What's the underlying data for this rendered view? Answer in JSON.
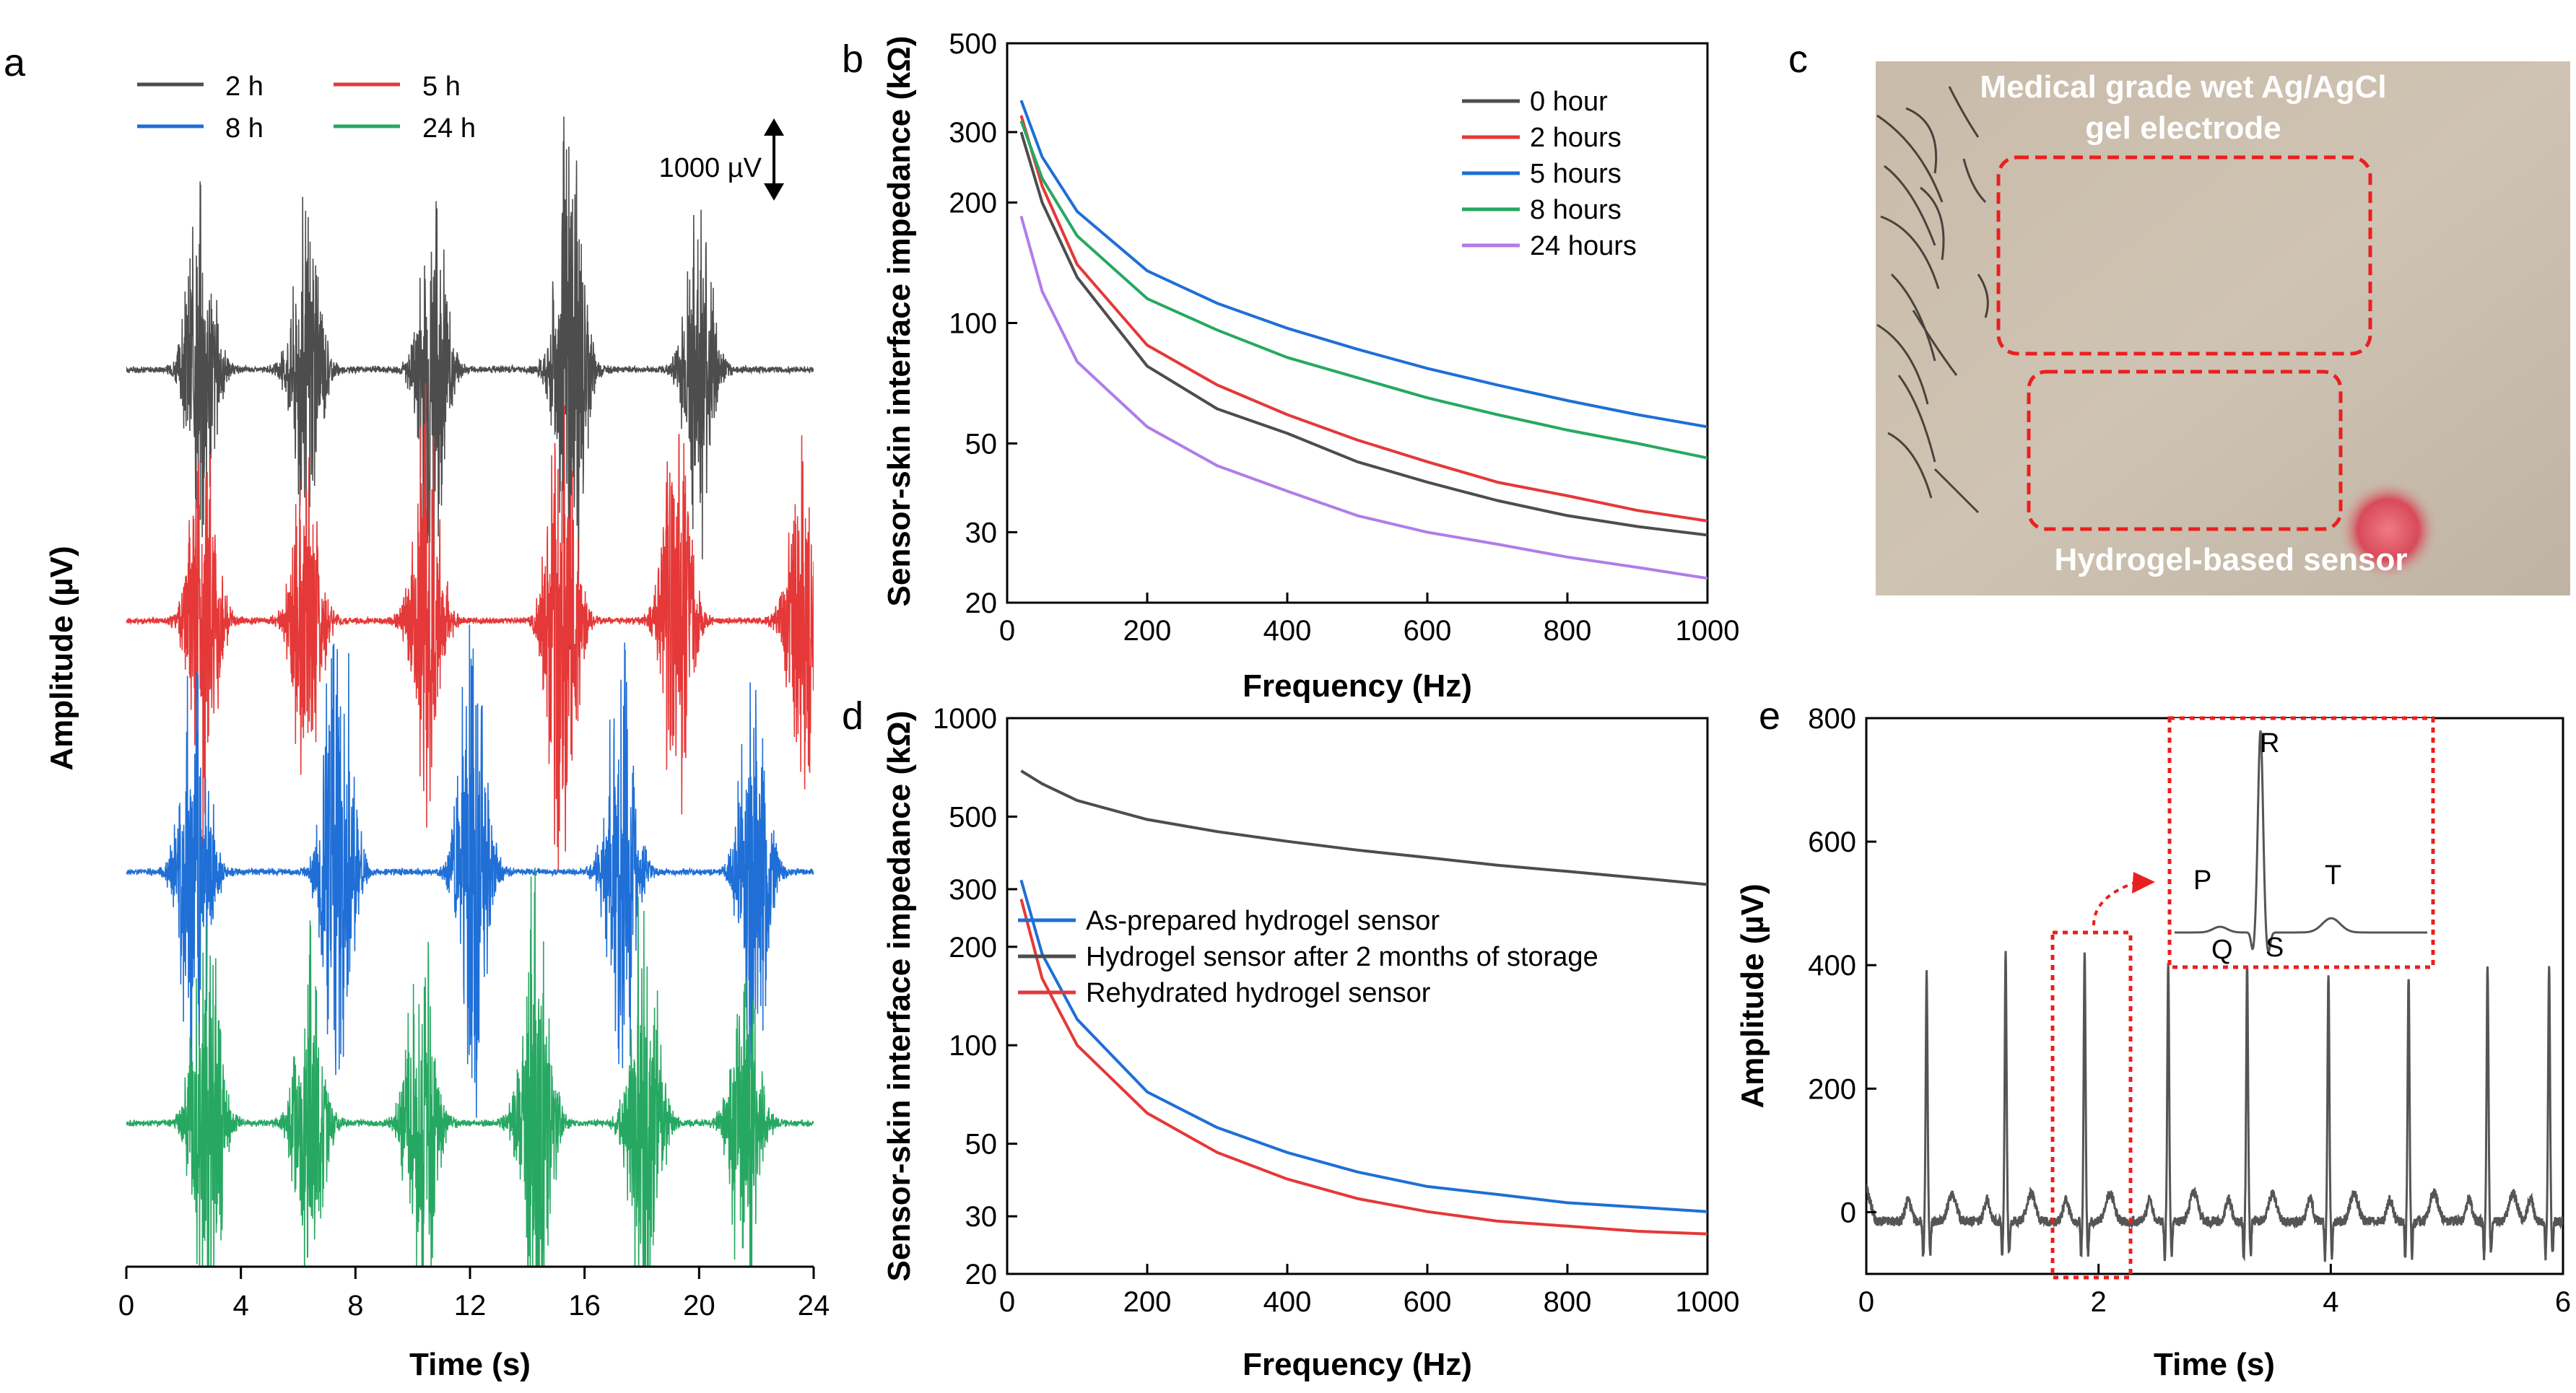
{
  "panels": {
    "a": "a",
    "b": "b",
    "c": "c",
    "d": "d",
    "e": "e"
  },
  "chart_data": [
    {
      "id": "a",
      "type": "line",
      "title": "",
      "xlabel": "Time (s)",
      "ylabel": "Amplitude (µV)",
      "xlim": [
        0,
        24
      ],
      "xticks": [
        "0",
        "4",
        "8",
        "12",
        "16",
        "20",
        "24"
      ],
      "xtick_values": [
        0,
        4,
        8,
        12,
        16,
        20,
        24
      ],
      "scale_bar": "1000 µV",
      "burst_times": [
        2.8,
        6.2,
        10.5,
        15.5,
        19.6
      ],
      "series": [
        {
          "name": "2 h",
          "color": "#4d4d4d",
          "bursts": [
            [
              2.6,
              560
            ],
            [
              6.3,
              520
            ],
            [
              10.7,
              600
            ],
            [
              15.5,
              800
            ],
            [
              20.0,
              540
            ]
          ]
        },
        {
          "name": "5 h",
          "color": "#e53838",
          "bursts": [
            [
              2.7,
              620
            ],
            [
              6.3,
              560
            ],
            [
              10.5,
              650
            ],
            [
              15.2,
              800
            ],
            [
              19.2,
              640
            ],
            [
              23.6,
              600
            ]
          ]
        },
        {
          "name": "8 h",
          "color": "#1f6fd6",
          "bursts": [
            [
              2.4,
              700
            ],
            [
              7.4,
              860
            ],
            [
              12.1,
              760
            ],
            [
              17.3,
              720
            ],
            [
              21.9,
              620
            ]
          ]
        },
        {
          "name": "24 h",
          "color": "#27a862",
          "bursts": [
            [
              2.8,
              720
            ],
            [
              6.4,
              560
            ],
            [
              10.3,
              600
            ],
            [
              14.3,
              800
            ],
            [
              18.1,
              720
            ],
            [
              21.6,
              540
            ]
          ]
        }
      ]
    },
    {
      "id": "b",
      "type": "line",
      "title": "",
      "xlabel": "Frequency (Hz)",
      "ylabel": "Sensor-skin interface impedance (kΩ)",
      "xlim": [
        0,
        1000
      ],
      "ylim": [
        20,
        500
      ],
      "yscale": "log",
      "xticks": [
        "0",
        "200",
        "400",
        "600",
        "800",
        "1000"
      ],
      "xtick_values": [
        0,
        200,
        400,
        600,
        800,
        1000
      ],
      "yticks": [
        "20",
        "30",
        "50",
        "100",
        "200",
        "300",
        "500"
      ],
      "ytick_values": [
        20,
        30,
        50,
        100,
        200,
        300,
        500
      ],
      "legend": "top-right",
      "series": [
        {
          "name": "0 hour",
          "color": "#4d4d4d",
          "x": [
            20,
            50,
            100,
            200,
            300,
            400,
            500,
            600,
            700,
            800,
            900,
            1000
          ],
          "y": [
            300,
            200,
            130,
            78,
            61,
            53,
            45,
            40,
            36,
            33,
            31,
            29.5
          ]
        },
        {
          "name": "2 hours",
          "color": "#e53838",
          "x": [
            20,
            50,
            100,
            200,
            300,
            400,
            500,
            600,
            700,
            800,
            900,
            1000
          ],
          "y": [
            330,
            220,
            140,
            88,
            70,
            59,
            51,
            45,
            40,
            37,
            34,
            32
          ]
        },
        {
          "name": "5 hours",
          "color": "#1f6fd6",
          "x": [
            20,
            50,
            100,
            200,
            300,
            400,
            500,
            600,
            700,
            800,
            900,
            1000
          ],
          "y": [
            360,
            260,
            190,
            135,
            112,
            97,
            86,
            77,
            70,
            64,
            59,
            55
          ]
        },
        {
          "name": "8 hours",
          "color": "#27a862",
          "x": [
            20,
            50,
            100,
            200,
            300,
            400,
            500,
            600,
            700,
            800,
            900,
            1000
          ],
          "y": [
            320,
            230,
            165,
            115,
            96,
            82,
            73,
            65,
            59,
            54,
            50,
            46
          ]
        },
        {
          "name": "24 hours",
          "color": "#b07de8",
          "x": [
            20,
            50,
            100,
            200,
            300,
            400,
            500,
            600,
            700,
            800,
            900,
            1000
          ],
          "y": [
            185,
            120,
            80,
            55,
            44,
            38,
            33,
            30,
            28,
            26,
            24.5,
            23
          ]
        }
      ]
    },
    {
      "id": "d",
      "type": "line",
      "title": "",
      "xlabel": "Frequency (Hz)",
      "ylabel": "Sensor-skin interface impedance (kΩ)",
      "xlim": [
        0,
        1000
      ],
      "ylim": [
        20,
        1000
      ],
      "yscale": "log",
      "xticks": [
        "0",
        "200",
        "400",
        "600",
        "800",
        "1000"
      ],
      "xtick_values": [
        0,
        200,
        400,
        600,
        800,
        1000
      ],
      "yticks": [
        "20",
        "30",
        "50",
        "100",
        "200",
        "300",
        "500",
        "1000"
      ],
      "ytick_values": [
        20,
        30,
        50,
        100,
        200,
        300,
        500,
        1000
      ],
      "legend": "center-left",
      "series": [
        {
          "name": "As-prepared hydrogel sensor",
          "color": "#1f6fd6",
          "x": [
            20,
            50,
            100,
            200,
            300,
            400,
            500,
            600,
            700,
            800,
            900,
            1000
          ],
          "y": [
            320,
            190,
            120,
            72,
            56,
            47,
            41,
            37,
            35,
            33,
            32,
            31
          ]
        },
        {
          "name": "Hydrogel sensor after 2 months of storage",
          "color": "#4d4d4d",
          "x": [
            20,
            50,
            100,
            200,
            300,
            400,
            500,
            600,
            700,
            800,
            900,
            1000
          ],
          "y": [
            690,
            630,
            560,
            490,
            450,
            420,
            395,
            375,
            355,
            340,
            325,
            310
          ]
        },
        {
          "name": "Rehydrated hydrogel sensor",
          "color": "#e53838",
          "x": [
            20,
            50,
            100,
            200,
            300,
            400,
            500,
            600,
            700,
            800,
            900,
            1000
          ],
          "y": [
            280,
            160,
            100,
            62,
            47,
            39,
            34,
            31,
            29,
            28,
            27,
            26.5
          ]
        }
      ]
    },
    {
      "id": "e",
      "type": "line",
      "title": "",
      "xlabel": "Time (s)",
      "ylabel": "Amplitude (µV)",
      "xlim": [
        0,
        6
      ],
      "ylim": [
        -100,
        800
      ],
      "xticks": [
        "0",
        "2",
        "4",
        "6"
      ],
      "xtick_values": [
        0,
        2,
        4,
        6
      ],
      "yticks": [
        "0",
        "200",
        "400",
        "600",
        "800"
      ],
      "ytick_values": [
        0,
        200,
        400,
        600,
        800
      ],
      "color": "#555555",
      "r_peak_times": [
        0.52,
        1.2,
        1.88,
        2.6,
        3.28,
        3.98,
        4.67,
        5.35,
        5.88
      ],
      "r_peak_values": [
        400,
        440,
        440,
        420,
        420,
        400,
        400,
        420,
        420
      ],
      "inset_labels": [
        "P",
        "Q",
        "R",
        "S",
        "T"
      ]
    }
  ],
  "photo": {
    "label_top_line1": "Medical grade wet Ag/AgCl",
    "label_top_line2": "gel electrode",
    "label_bottom": "Hydrogel-based sensor"
  },
  "colors": {
    "gray": "#4d4d4d",
    "red": "#e53838",
    "blue": "#1f6fd6",
    "green": "#27a862",
    "purple": "#b07de8",
    "dash_red": "#e8201f"
  }
}
